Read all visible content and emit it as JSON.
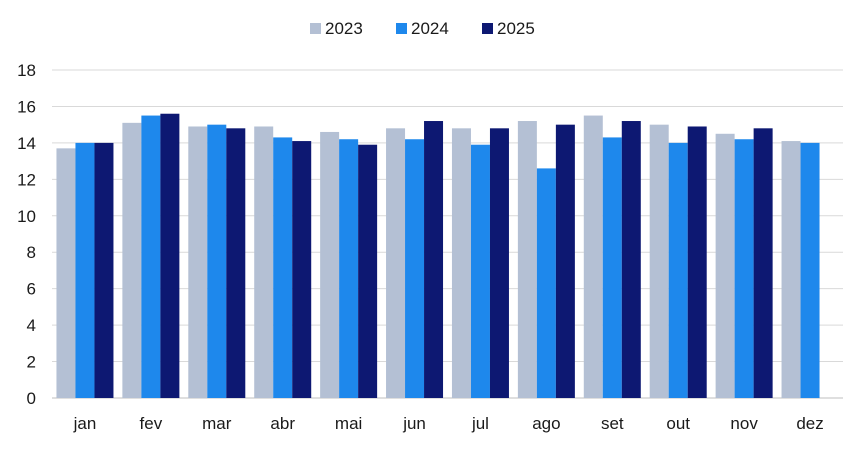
{
  "chart_data": {
    "type": "bar",
    "title": "",
    "xlabel": "",
    "ylabel": "",
    "categories": [
      "jan",
      "fev",
      "mar",
      "abr",
      "mai",
      "jun",
      "jul",
      "ago",
      "set",
      "out",
      "nov",
      "dez"
    ],
    "series": [
      {
        "name": "2023",
        "color": "#b4c0d4",
        "values": [
          13.7,
          15.1,
          14.9,
          14.9,
          14.6,
          14.8,
          14.8,
          15.2,
          15.5,
          15.0,
          14.5,
          14.1
        ]
      },
      {
        "name": "2024",
        "color": "#1e88ec",
        "values": [
          14.0,
          15.5,
          15.0,
          14.3,
          14.2,
          14.2,
          13.9,
          12.6,
          14.3,
          14.0,
          14.2,
          14.0
        ]
      },
      {
        "name": "2025",
        "color": "#0d1872",
        "values": [
          14.0,
          15.6,
          14.8,
          14.1,
          13.9,
          15.2,
          14.8,
          15.0,
          15.2,
          14.9,
          14.8,
          null
        ]
      }
    ],
    "y_ticks": [
      "0",
      "2",
      "4",
      "6",
      "8",
      "10",
      "12",
      "14",
      "16",
      "18"
    ],
    "ylim": [
      0,
      18
    ],
    "grid": true,
    "legend": "top-center"
  }
}
